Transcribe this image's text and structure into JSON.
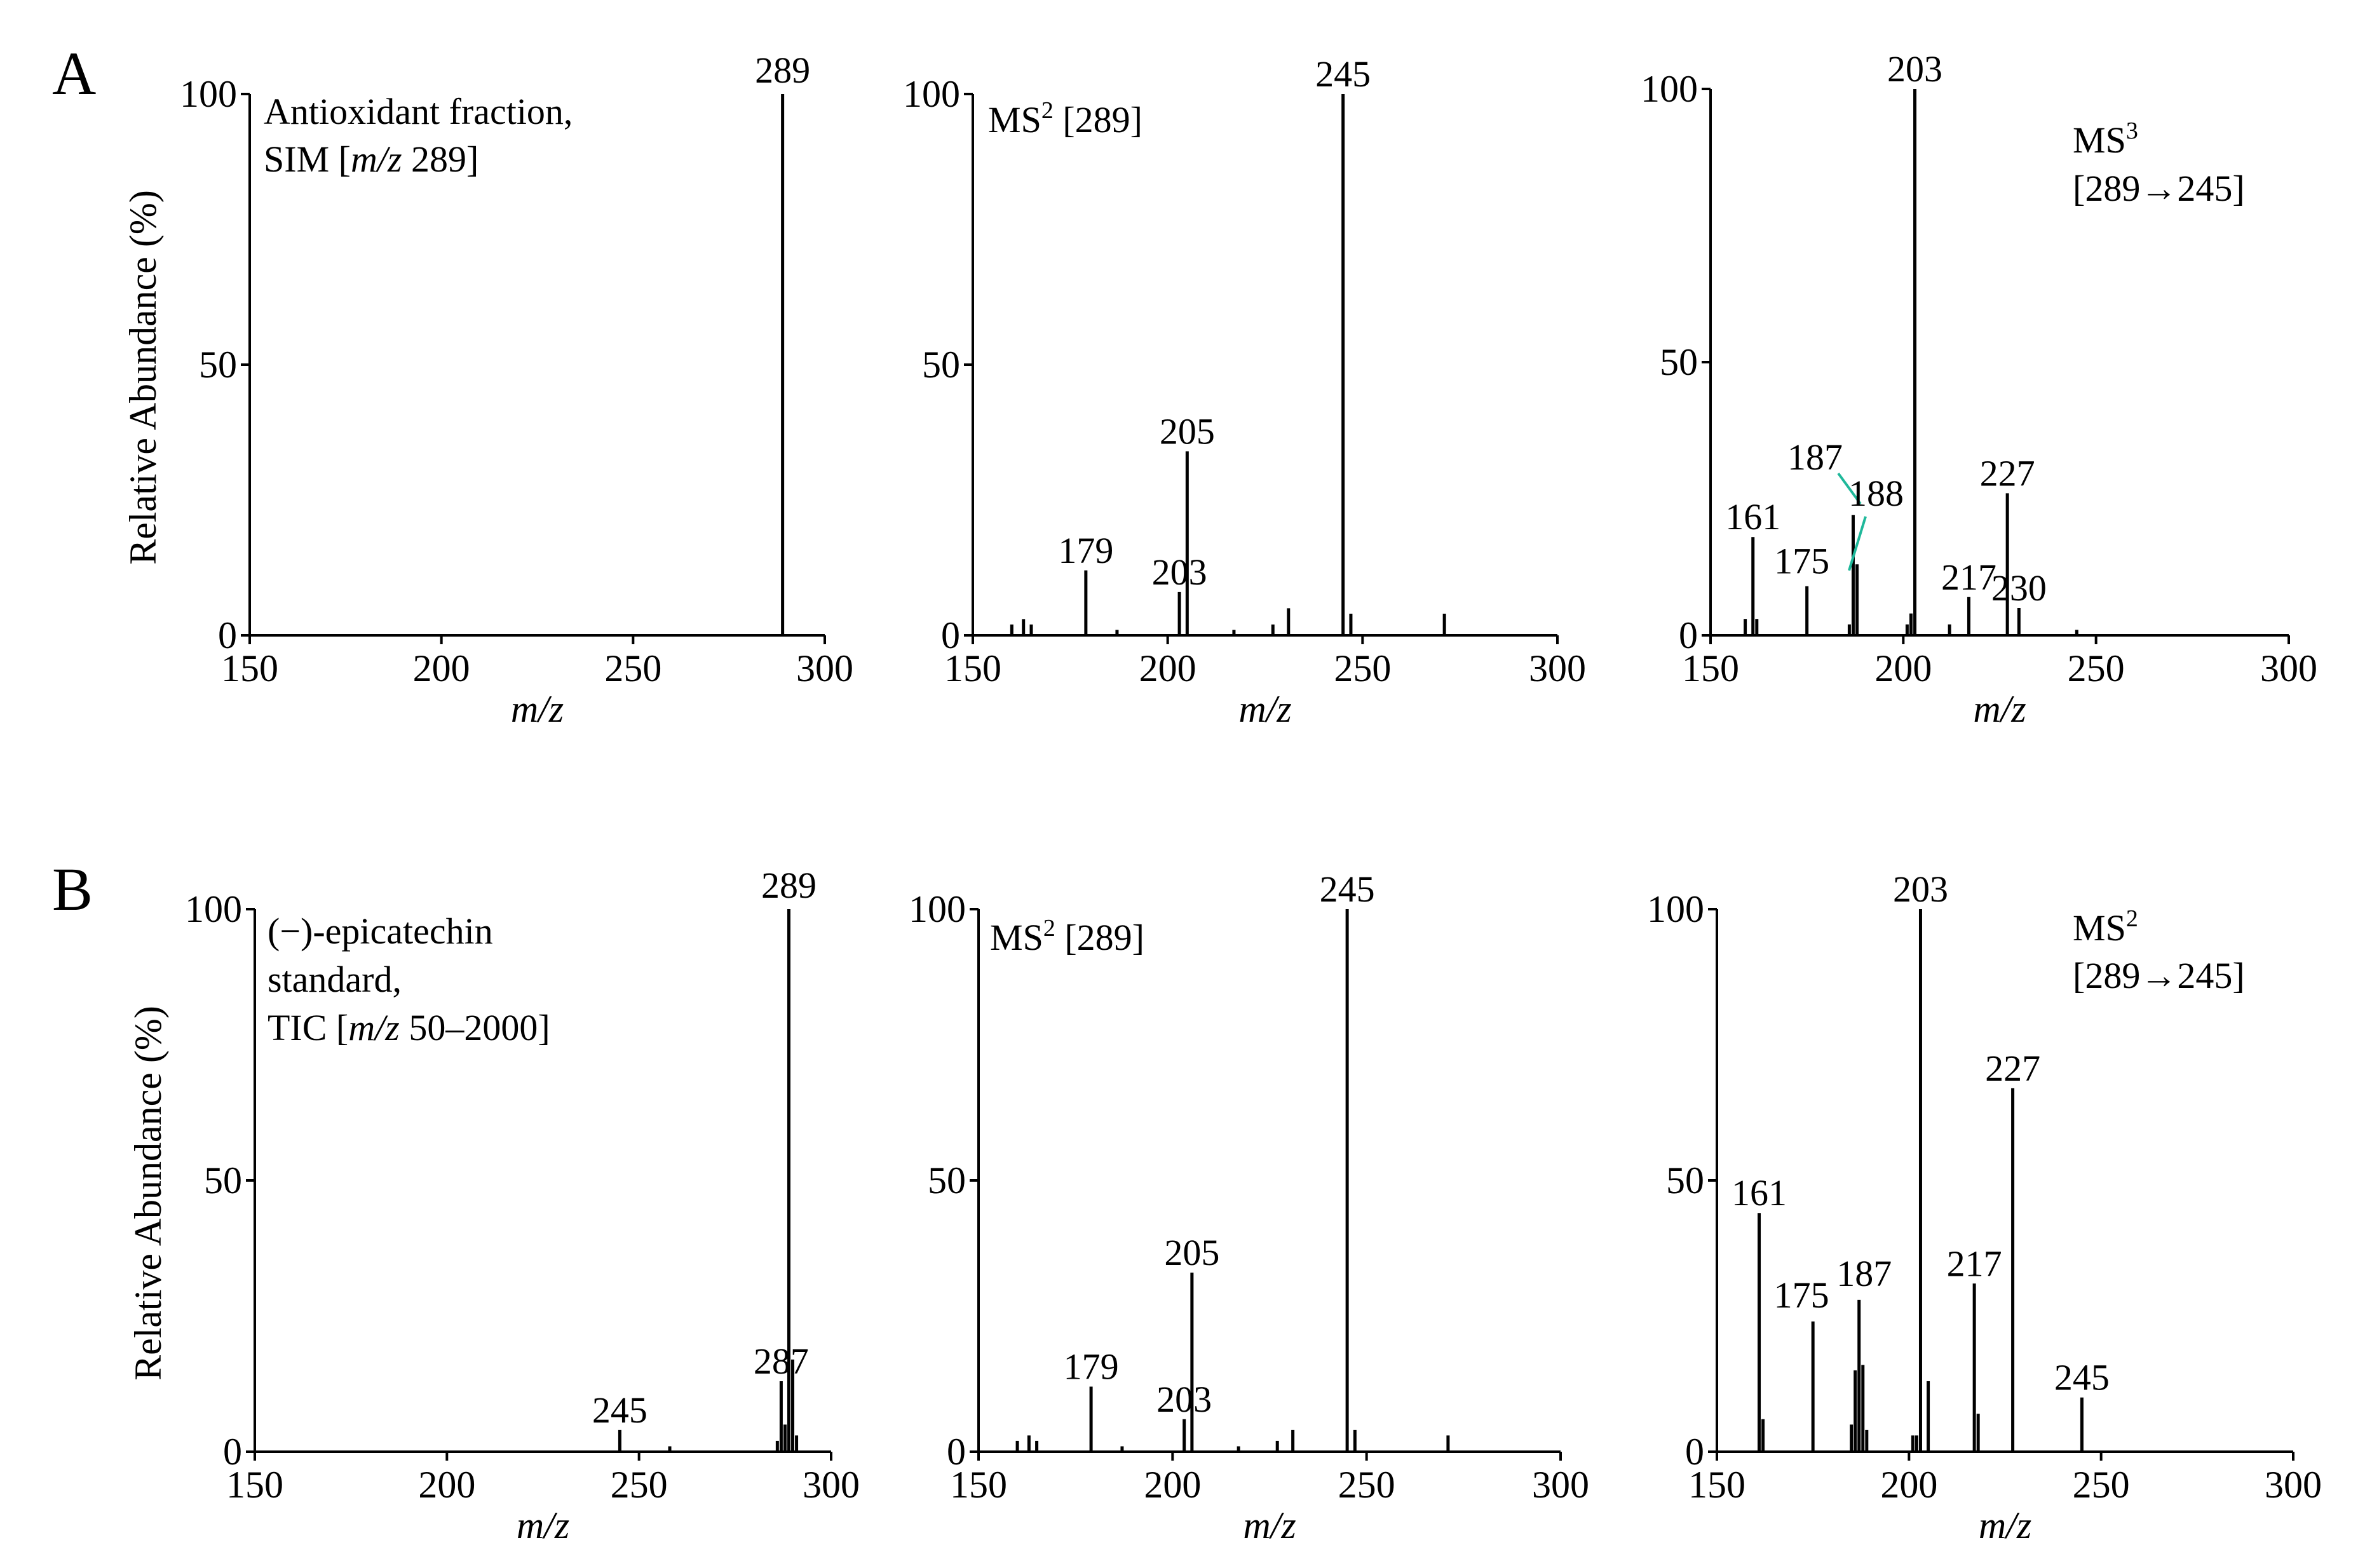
{
  "panel_letters": [
    "A",
    "B"
  ],
  "chart_data": [
    {
      "type": "bar",
      "panel": "A",
      "xlabel": "m/z",
      "ylabel": "Relative Abundance  (%)",
      "xlim": [
        150,
        300
      ],
      "ylim": [
        0,
        100
      ],
      "xticks": [
        150,
        200,
        250,
        300
      ],
      "yticks": [
        0,
        50,
        100
      ],
      "annotation": [
        "Antioxidant  fraction,",
        "SIM [m/z 289]"
      ],
      "peaks": [
        {
          "mz": 289,
          "ri": 100,
          "label": "289"
        }
      ]
    },
    {
      "type": "bar",
      "panel": "A",
      "xlabel": "m/z",
      "ylabel": "",
      "xlim": [
        150,
        300
      ],
      "ylim": [
        0,
        100
      ],
      "xticks": [
        150,
        200,
        250,
        300
      ],
      "yticks": [
        0,
        50,
        100
      ],
      "annotation": [
        "MS2 [289]"
      ],
      "peaks": [
        {
          "mz": 160,
          "ri": 2
        },
        {
          "mz": 163,
          "ri": 3
        },
        {
          "mz": 165,
          "ri": 2
        },
        {
          "mz": 179,
          "ri": 12,
          "label": "179"
        },
        {
          "mz": 187,
          "ri": 1
        },
        {
          "mz": 203,
          "ri": 8,
          "label": "203"
        },
        {
          "mz": 205,
          "ri": 34,
          "label": "205"
        },
        {
          "mz": 217,
          "ri": 1
        },
        {
          "mz": 227,
          "ri": 2
        },
        {
          "mz": 231,
          "ri": 5
        },
        {
          "mz": 245,
          "ri": 100,
          "label": "245"
        },
        {
          "mz": 247,
          "ri": 4
        },
        {
          "mz": 271,
          "ri": 4
        }
      ]
    },
    {
      "type": "bar",
      "panel": "A",
      "xlabel": "m/z",
      "ylabel": "",
      "xlim": [
        150,
        300
      ],
      "ylim": [
        0,
        100
      ],
      "xticks": [
        150,
        200,
        250,
        300
      ],
      "yticks": [
        0,
        50,
        100
      ],
      "annotation": [
        "MS3",
        "[289→245]"
      ],
      "peaks": [
        {
          "mz": 159,
          "ri": 3
        },
        {
          "mz": 161,
          "ri": 18,
          "label": "161"
        },
        {
          "mz": 162,
          "ri": 3
        },
        {
          "mz": 175,
          "ri": 9,
          "label": "175"
        },
        {
          "mz": 186,
          "ri": 2
        },
        {
          "mz": 187,
          "ri": 22,
          "label": "187"
        },
        {
          "mz": 188,
          "ri": 13,
          "label": "188"
        },
        {
          "mz": 201,
          "ri": 2
        },
        {
          "mz": 202,
          "ri": 4
        },
        {
          "mz": 203,
          "ri": 100,
          "label": "203"
        },
        {
          "mz": 212,
          "ri": 2
        },
        {
          "mz": 217,
          "ri": 7,
          "label": "217"
        },
        {
          "mz": 227,
          "ri": 26,
          "label": "227"
        },
        {
          "mz": 230,
          "ri": 5,
          "label": "230"
        },
        {
          "mz": 245,
          "ri": 1
        }
      ]
    },
    {
      "type": "bar",
      "panel": "B",
      "xlabel": "m/z",
      "ylabel": "Relative Abundance  (%)",
      "xlim": [
        150,
        300
      ],
      "ylim": [
        0,
        100
      ],
      "xticks": [
        150,
        200,
        250,
        300
      ],
      "yticks": [
        0,
        50,
        100
      ],
      "annotation": [
        "(−)-epicatechin",
        "standard,",
        "TIC  [m/z 50–2000]"
      ],
      "peaks": [
        {
          "mz": 245,
          "ri": 4,
          "label": "245"
        },
        {
          "mz": 258,
          "ri": 1
        },
        {
          "mz": 286,
          "ri": 2
        },
        {
          "mz": 287,
          "ri": 13,
          "label": "287"
        },
        {
          "mz": 288,
          "ri": 5
        },
        {
          "mz": 289,
          "ri": 100,
          "label": "289"
        },
        {
          "mz": 290,
          "ri": 17
        },
        {
          "mz": 291,
          "ri": 3
        }
      ]
    },
    {
      "type": "bar",
      "panel": "B",
      "xlabel": "m/z",
      "ylabel": "",
      "xlim": [
        150,
        300
      ],
      "ylim": [
        0,
        100
      ],
      "xticks": [
        150,
        200,
        250,
        300
      ],
      "yticks": [
        0,
        50,
        100
      ],
      "annotation": [
        "MS2 [289]"
      ],
      "peaks": [
        {
          "mz": 160,
          "ri": 2
        },
        {
          "mz": 163,
          "ri": 3
        },
        {
          "mz": 165,
          "ri": 2
        },
        {
          "mz": 179,
          "ri": 12,
          "label": "179"
        },
        {
          "mz": 187,
          "ri": 1
        },
        {
          "mz": 203,
          "ri": 6,
          "label": "203"
        },
        {
          "mz": 205,
          "ri": 33,
          "label": "205"
        },
        {
          "mz": 217,
          "ri": 1
        },
        {
          "mz": 227,
          "ri": 2
        },
        {
          "mz": 231,
          "ri": 4
        },
        {
          "mz": 245,
          "ri": 100,
          "label": "245"
        },
        {
          "mz": 247,
          "ri": 4
        },
        {
          "mz": 271,
          "ri": 3
        }
      ]
    },
    {
      "type": "bar",
      "panel": "B",
      "xlabel": "m/z",
      "ylabel": "",
      "xlim": [
        150,
        300
      ],
      "ylim": [
        0,
        100
      ],
      "xticks": [
        150,
        200,
        250,
        300
      ],
      "yticks": [
        0,
        50,
        100
      ],
      "annotation": [
        "MS2",
        "[289→245]"
      ],
      "peaks": [
        {
          "mz": 161,
          "ri": 44,
          "label": "161"
        },
        {
          "mz": 162,
          "ri": 6
        },
        {
          "mz": 175,
          "ri": 24,
          "label": "175"
        },
        {
          "mz": 185,
          "ri": 5
        },
        {
          "mz": 186,
          "ri": 15
        },
        {
          "mz": 187,
          "ri": 28,
          "label": "187"
        },
        {
          "mz": 188,
          "ri": 16
        },
        {
          "mz": 189,
          "ri": 4
        },
        {
          "mz": 201,
          "ri": 3
        },
        {
          "mz": 202,
          "ri": 3
        },
        {
          "mz": 203,
          "ri": 100,
          "label": "203"
        },
        {
          "mz": 205,
          "ri": 13
        },
        {
          "mz": 217,
          "ri": 31,
          "label": "217"
        },
        {
          "mz": 218,
          "ri": 7
        },
        {
          "mz": 227,
          "ri": 67,
          "label": "227"
        },
        {
          "mz": 245,
          "ri": 10,
          "label": "245"
        }
      ]
    }
  ]
}
